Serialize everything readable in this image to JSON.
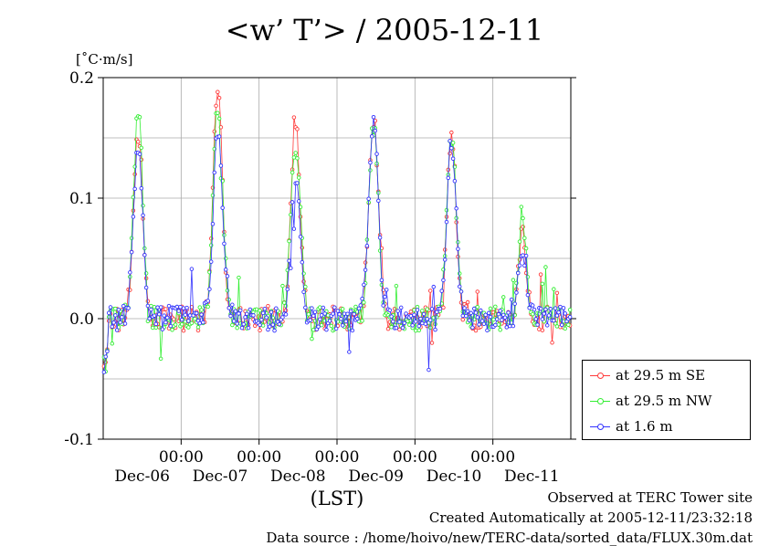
{
  "chart_data": {
    "type": "line",
    "title": "<w’ T’> / 2005-12-11",
    "ylabel": "[˚C·m/s]",
    "xlabel": "(LST)",
    "ylim": [
      -0.1,
      0.2
    ],
    "yticks": [
      "0.2",
      "0.1",
      "0.0",
      "-0.1"
    ],
    "xticks_time": [
      "00:00",
      "00:00",
      "00:00",
      "00:00",
      "00:00"
    ],
    "xticks_date": [
      "Dec-06",
      "Dec-07",
      "Dec-08",
      "Dec-09",
      "Dec-10",
      "Dec-11"
    ],
    "x_start_day": 0,
    "x_end_day": 6,
    "grid": true,
    "legend_position": "right",
    "series": [
      {
        "name": "at 29.5 m SE",
        "color": "#ff3a3a",
        "peaks": [
          {
            "day": 0.45,
            "value": 0.153
          },
          {
            "day": 1.47,
            "value": 0.189
          },
          {
            "day": 2.47,
            "value": 0.158
          },
          {
            "day": 3.47,
            "value": 0.165
          },
          {
            "day": 4.47,
            "value": 0.149
          },
          {
            "day": 5.38,
            "value": 0.07
          }
        ]
      },
      {
        "name": "at 29.5 m NW",
        "color": "#33ee33",
        "peaks": [
          {
            "day": 0.45,
            "value": 0.168
          },
          {
            "day": 1.47,
            "value": 0.177
          },
          {
            "day": 2.47,
            "value": 0.147
          },
          {
            "day": 3.47,
            "value": 0.16
          },
          {
            "day": 4.47,
            "value": 0.147
          },
          {
            "day": 5.38,
            "value": 0.088
          }
        ]
      },
      {
        "name": "at 1.6 m",
        "color": "#3333ff",
        "peaks": [
          {
            "day": 0.45,
            "value": 0.14
          },
          {
            "day": 1.47,
            "value": 0.15
          },
          {
            "day": 2.47,
            "value": 0.12
          },
          {
            "day": 3.47,
            "value": 0.168
          },
          {
            "day": 4.47,
            "value": 0.148
          },
          {
            "day": 5.38,
            "value": 0.055
          }
        ]
      }
    ]
  },
  "footer": {
    "site": "Observed at TERC Tower site",
    "created": "Created Automatically at 2005-12-11/23:32:18",
    "source": "Data source : /home/hoivo/new/TERC-data/sorted_data/FLUX.30m.dat"
  }
}
